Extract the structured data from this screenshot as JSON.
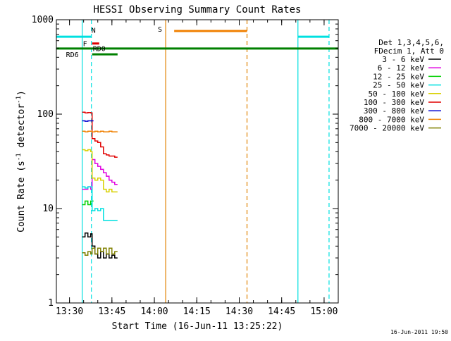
{
  "chart_data": {
    "type": "line",
    "title": "HESSI Observing Summary Count Rates",
    "xlabel": "Start Time (16-Jun-11 13:25:22)",
    "ylabel": "Count Rate (s",
    "ylabel_exp": "-1",
    "ylabel_mid": " detector",
    "ylabel_end": ")",
    "y_scale": "log",
    "ylim": [
      1,
      1000
    ],
    "y_ticks": [
      {
        "value": 1,
        "label": "1"
      },
      {
        "value": 10,
        "label": "10"
      },
      {
        "value": 100,
        "label": "100"
      },
      {
        "value": 1000,
        "label": "1000"
      }
    ],
    "xlim": [
      "13:25:22",
      "15:05:00"
    ],
    "x_ticks": [
      {
        "value": "13:30",
        "label": "13:30"
      },
      {
        "value": "13:45",
        "label": "13:45"
      },
      {
        "value": "14:00",
        "label": "14:00"
      },
      {
        "value": "14:15",
        "label": "14:15"
      },
      {
        "value": "14:30",
        "label": "14:30"
      },
      {
        "value": "14:45",
        "label": "14:45"
      },
      {
        "value": "15:00",
        "label": "15:00"
      }
    ],
    "legend": {
      "placement": "right",
      "header": [
        "Det 1,3,4,5,6,",
        "FDecim 1, Att 0"
      ],
      "entries": [
        {
          "label": "3 - 6 keV",
          "color": "#000000"
        },
        {
          "label": "6 - 12 keV",
          "color": "#e000e0"
        },
        {
          "label": "12 - 25 keV",
          "color": "#00d000"
        },
        {
          "label": "25 - 50 keV",
          "color": "#00e0e0"
        },
        {
          "label": "50 - 100 keV",
          "color": "#d8d000"
        },
        {
          "label": "100 - 300 keV",
          "color": "#e00000"
        },
        {
          "label": "300 - 800 keV",
          "color": "#0000d0"
        },
        {
          "label": "800 - 7000 keV",
          "color": "#f08000"
        },
        {
          "label": "7000 - 20000 keV",
          "color": "#808000"
        }
      ]
    },
    "series": [
      {
        "name": "3 - 6 keV",
        "color": "#000000",
        "x": [
          "13:34:30",
          "13:35:30",
          "13:36:30",
          "13:37:30",
          "13:38:00",
          "13:39:00",
          "13:40:00",
          "13:41:00",
          "13:42:00",
          "13:43:00",
          "13:44:00",
          "13:45:00",
          "13:46:00"
        ],
        "y": [
          5.0,
          5.5,
          5.0,
          5.4,
          4.0,
          3.3,
          3.0,
          3.5,
          3.0,
          3.3,
          3.0,
          3.2,
          3.0
        ]
      },
      {
        "name": "6 - 12 keV",
        "color": "#e000e0",
        "x": [
          "13:34:30",
          "13:35:30",
          "13:36:30",
          "13:37:30",
          "13:38:00",
          "13:39:00",
          "13:40:00",
          "13:41:00",
          "13:42:00",
          "13:43:00",
          "13:44:00",
          "13:45:00",
          "13:46:00"
        ],
        "y": [
          16,
          16,
          17,
          16,
          33,
          30,
          28,
          26,
          24,
          22,
          20,
          19,
          18
        ]
      },
      {
        "name": "12 - 25 keV",
        "color": "#00d000",
        "x": [
          "13:34:30",
          "13:35:30",
          "13:36:30",
          "13:37:30"
        ],
        "y": [
          11,
          12,
          11,
          12
        ]
      },
      {
        "name": "25 - 50 keV",
        "color": "#00e0e0",
        "x": [
          "13:34:30",
          "13:35:30",
          "13:36:30",
          "13:37:30",
          "13:38:00",
          "13:39:00",
          "13:40:00",
          "13:41:00",
          "13:42:00",
          "13:43:00",
          "13:44:00",
          "13:45:00",
          "13:46:00"
        ],
        "y": [
          17,
          16.5,
          17,
          17,
          9.5,
          10,
          9.5,
          10,
          7.5,
          7.5,
          7.5,
          7.5,
          7.5
        ]
      },
      {
        "name": "50 - 100 keV",
        "color": "#d8d000",
        "x": [
          "13:34:30",
          "13:35:30",
          "13:36:30",
          "13:37:30",
          "13:38:00",
          "13:39:00",
          "13:40:00",
          "13:41:00",
          "13:42:00",
          "13:43:00",
          "13:44:00",
          "13:45:00",
          "13:46:00"
        ],
        "y": [
          42,
          41,
          42,
          40,
          21,
          20,
          21,
          20,
          16,
          15,
          16,
          15,
          15
        ]
      },
      {
        "name": "100 - 300 keV",
        "color": "#e00000",
        "x": [
          "13:34:30",
          "13:35:30",
          "13:36:30",
          "13:37:30",
          "13:38:00",
          "13:39:00",
          "13:40:00",
          "13:41:00",
          "13:42:00",
          "13:43:00",
          "13:44:00",
          "13:45:00",
          "13:46:00"
        ],
        "y": [
          105,
          103,
          104,
          103,
          55,
          52,
          50,
          45,
          38,
          37,
          36,
          36,
          35
        ]
      },
      {
        "name": "300 - 800 keV",
        "color": "#0000d0",
        "x": [
          "13:34:30",
          "13:35:30",
          "13:36:30",
          "13:37:30"
        ],
        "y": [
          85,
          84,
          85,
          85
        ]
      },
      {
        "name": "800 - 7000 keV",
        "color": "#f08000",
        "x": [
          "13:34:30",
          "13:35:30",
          "13:36:30",
          "13:37:30",
          "13:38:00",
          "13:39:00",
          "13:40:00",
          "13:41:00",
          "13:42:00",
          "13:43:00",
          "13:44:00",
          "13:45:00",
          "13:46:00"
        ],
        "y": [
          66,
          65,
          66,
          66,
          65,
          66,
          65,
          66,
          65,
          65,
          66,
          65,
          65
        ]
      },
      {
        "name": "7000 - 20000 keV",
        "color": "#808000",
        "x": [
          "13:34:30",
          "13:35:30",
          "13:36:30",
          "13:37:30",
          "13:38:00",
          "13:39:00",
          "13:40:00",
          "13:41:00",
          "13:42:00",
          "13:43:00",
          "13:44:00",
          "13:45:00",
          "13:46:00"
        ],
        "y": [
          3.4,
          3.2,
          3.5,
          3.3,
          3.8,
          3.3,
          3.8,
          3.5,
          3.8,
          3.3,
          3.8,
          3.3,
          3.5
        ]
      }
    ],
    "vertical_lines": [
      {
        "time": "13:34:30",
        "color": "#00e0e0",
        "style": "solid"
      },
      {
        "time": "13:37:45",
        "color": "#00e0e0",
        "style": "dashed"
      },
      {
        "time": "14:04:00",
        "color": "#e08000",
        "style": "solid"
      },
      {
        "time": "14:32:45",
        "color": "#e08000",
        "style": "dashed"
      },
      {
        "time": "14:50:45",
        "color": "#00e0e0",
        "style": "solid"
      },
      {
        "time": "15:01:45",
        "color": "#00e0e0",
        "style": "dashed"
      }
    ],
    "flag_bars": [
      {
        "label": "N",
        "color": "#00e0e0",
        "value": 660,
        "segments": [
          [
            "13:25:22",
            "13:37:45"
          ],
          [
            "14:50:45",
            "15:01:45"
          ]
        ],
        "label_time": "13:38:30",
        "label_value": 780
      },
      {
        "label": "S",
        "color": "#f08000",
        "value": 760,
        "segments": [
          [
            "14:07:00",
            "14:32:45"
          ]
        ],
        "label_time": "14:02:00",
        "label_value": 800
      },
      {
        "label": "F",
        "color": "#e00000",
        "value": 560,
        "segments": [
          [
            "13:38:00",
            "13:40:30"
          ]
        ],
        "label_time": "13:35:30",
        "label_value": 560
      },
      {
        "label": "RD0",
        "color": "#008000",
        "value": 495,
        "segments": [
          [
            "13:25:22",
            "15:05:00"
          ]
        ],
        "label_time": "13:40:30",
        "label_value": 500
      },
      {
        "label": "RD6",
        "color": "#008000",
        "value": 430,
        "segments": [
          [
            "13:38:00",
            "13:47:00"
          ]
        ],
        "label_time": "13:31:00",
        "label_value": 430
      }
    ],
    "grid": false
  },
  "footer": {
    "timestamp": "16-Jun-2011 19:50"
  }
}
